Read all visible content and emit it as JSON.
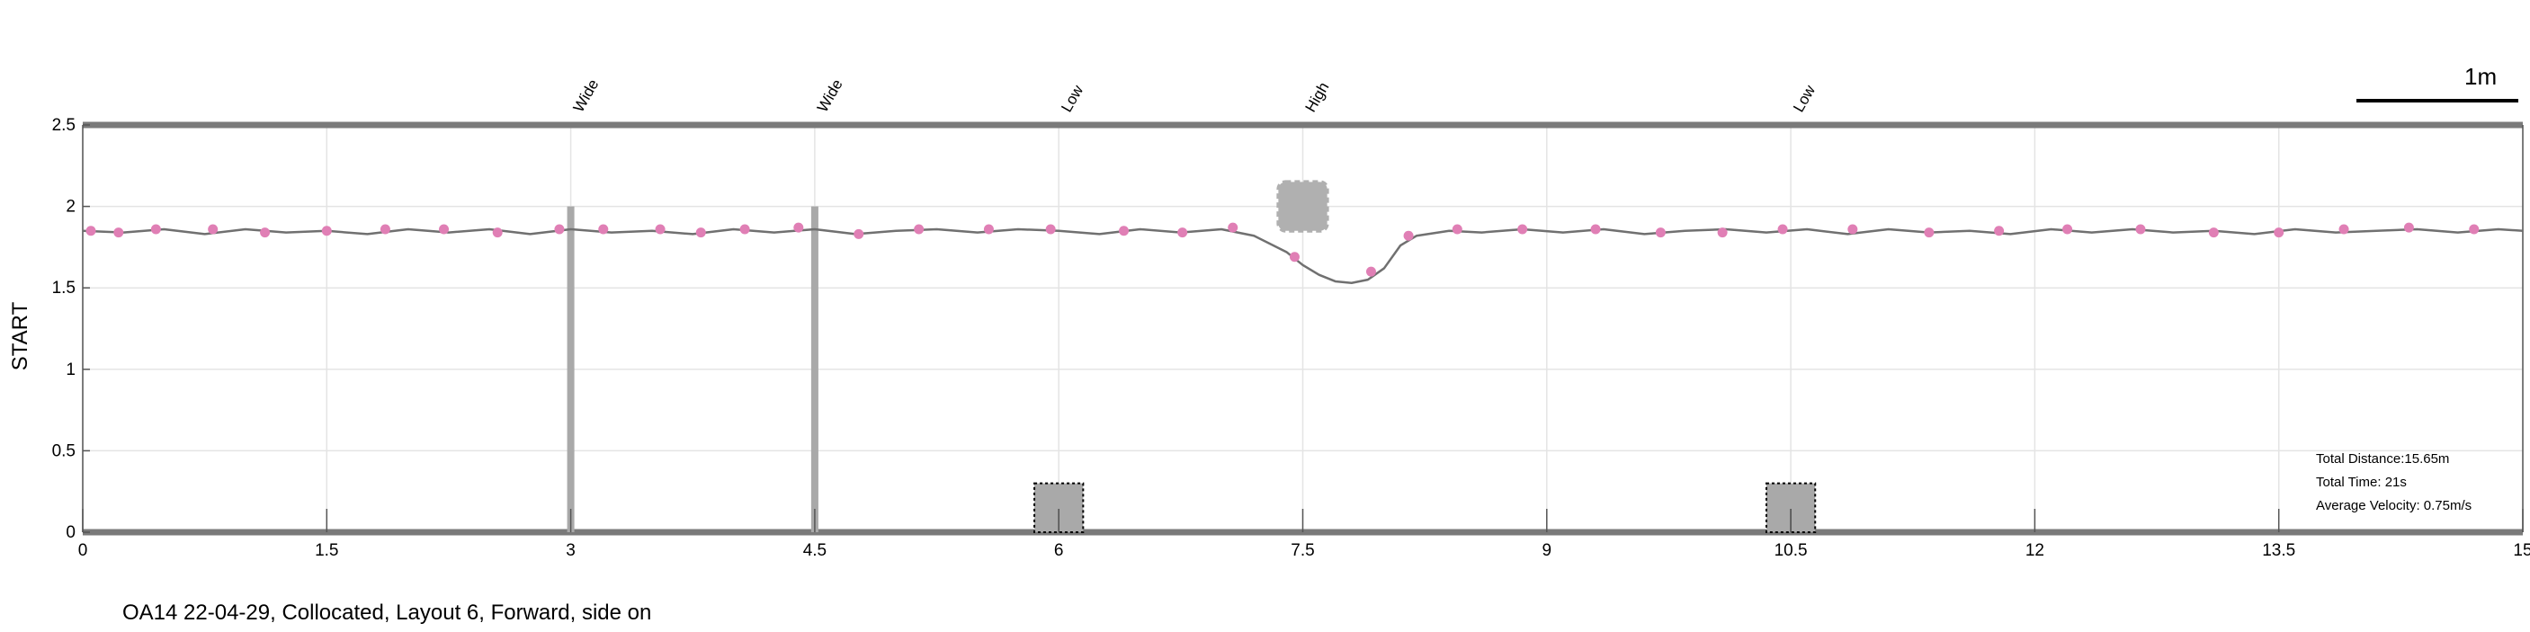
{
  "chart_data": {
    "type": "line",
    "ylabel": "START",
    "xlim": [
      0,
      15
    ],
    "ylim": [
      0,
      2.5
    ],
    "xticks": [
      "0",
      "1.5",
      "3",
      "4.5",
      "6",
      "7.5",
      "9",
      "10.5",
      "12",
      "13.5",
      "15"
    ],
    "yticks": [
      "0",
      "0.5",
      "1",
      "1.5",
      "2",
      "2.5"
    ],
    "grid": true,
    "path": {
      "color": "#707070",
      "x": [
        0,
        0.25,
        0.5,
        0.75,
        1.0,
        1.25,
        1.5,
        1.75,
        2.0,
        2.25,
        2.5,
        2.75,
        3.0,
        3.25,
        3.5,
        3.75,
        4.0,
        4.25,
        4.5,
        4.75,
        5.0,
        5.25,
        5.5,
        5.75,
        6.0,
        6.25,
        6.5,
        6.75,
        7.0,
        7.2,
        7.4,
        7.5,
        7.6,
        7.7,
        7.8,
        7.9,
        8.0,
        8.1,
        8.2,
        8.4,
        8.6,
        8.85,
        9.1,
        9.35,
        9.6,
        9.85,
        10.1,
        10.35,
        10.6,
        10.85,
        11.1,
        11.35,
        11.6,
        11.85,
        12.1,
        12.35,
        12.6,
        12.85,
        13.1,
        13.35,
        13.6,
        13.85,
        14.1,
        14.35,
        14.6,
        14.85,
        15.0
      ],
      "y": [
        1.85,
        1.84,
        1.86,
        1.83,
        1.86,
        1.84,
        1.85,
        1.83,
        1.86,
        1.84,
        1.86,
        1.83,
        1.86,
        1.84,
        1.85,
        1.83,
        1.86,
        1.84,
        1.86,
        1.83,
        1.85,
        1.86,
        1.84,
        1.86,
        1.85,
        1.83,
        1.86,
        1.84,
        1.86,
        1.82,
        1.72,
        1.64,
        1.58,
        1.54,
        1.53,
        1.55,
        1.62,
        1.76,
        1.82,
        1.85,
        1.84,
        1.86,
        1.84,
        1.86,
        1.83,
        1.85,
        1.86,
        1.84,
        1.86,
        1.83,
        1.86,
        1.84,
        1.85,
        1.83,
        1.86,
        1.84,
        1.86,
        1.84,
        1.85,
        1.83,
        1.86,
        1.84,
        1.85,
        1.86,
        1.84,
        1.86,
        1.85
      ]
    },
    "markers": {
      "color": "#e07fb5",
      "x": [
        0.05,
        0.22,
        0.45,
        0.8,
        1.12,
        1.5,
        1.86,
        2.22,
        2.55,
        2.93,
        3.2,
        3.55,
        3.8,
        4.07,
        4.4,
        4.77,
        5.14,
        5.57,
        5.95,
        6.4,
        6.76,
        7.07,
        7.45,
        7.92,
        8.15,
        8.45,
        8.85,
        9.3,
        9.7,
        10.08,
        10.45,
        10.88,
        11.35,
        11.78,
        12.2,
        12.65,
        13.1,
        13.5,
        13.9,
        14.3,
        14.7
      ],
      "y": [
        1.85,
        1.84,
        1.86,
        1.86,
        1.84,
        1.85,
        1.86,
        1.86,
        1.84,
        1.86,
        1.86,
        1.86,
        1.84,
        1.86,
        1.87,
        1.83,
        1.86,
        1.86,
        1.86,
        1.85,
        1.84,
        1.87,
        1.69,
        1.6,
        1.82,
        1.86,
        1.86,
        1.86,
        1.84,
        1.84,
        1.86,
        1.86,
        1.84,
        1.85,
        1.86,
        1.86,
        1.84,
        1.84,
        1.86,
        1.87,
        1.86
      ]
    },
    "obstacles": [
      {
        "label": "Wide",
        "type": "bar",
        "x": 3.0,
        "y_from": 0,
        "y_to": 2.0
      },
      {
        "label": "Wide",
        "type": "bar",
        "x": 4.5,
        "y_from": 0,
        "y_to": 2.0
      },
      {
        "label": "Low",
        "type": "box",
        "x_from": 5.85,
        "x_to": 6.15,
        "y_from": 0,
        "y_to": 0.3
      },
      {
        "label": "High",
        "type": "cloud",
        "x_from": 7.35,
        "x_to": 7.65,
        "y_from": 1.85,
        "y_to": 2.15
      },
      {
        "label": "Low",
        "type": "box",
        "x_from": 10.35,
        "x_to": 10.65,
        "y_from": 0,
        "y_to": 0.3
      }
    ],
    "scale_bar_label": "1m"
  },
  "info": {
    "total_distance": "Total Distance:15.65m",
    "total_time": "Total Time: 21s",
    "average_velocity": "Average Velocity: 0.75m/s"
  },
  "caption": "OA14 22-04-29, Collocated, Layout 6, Forward, side on"
}
